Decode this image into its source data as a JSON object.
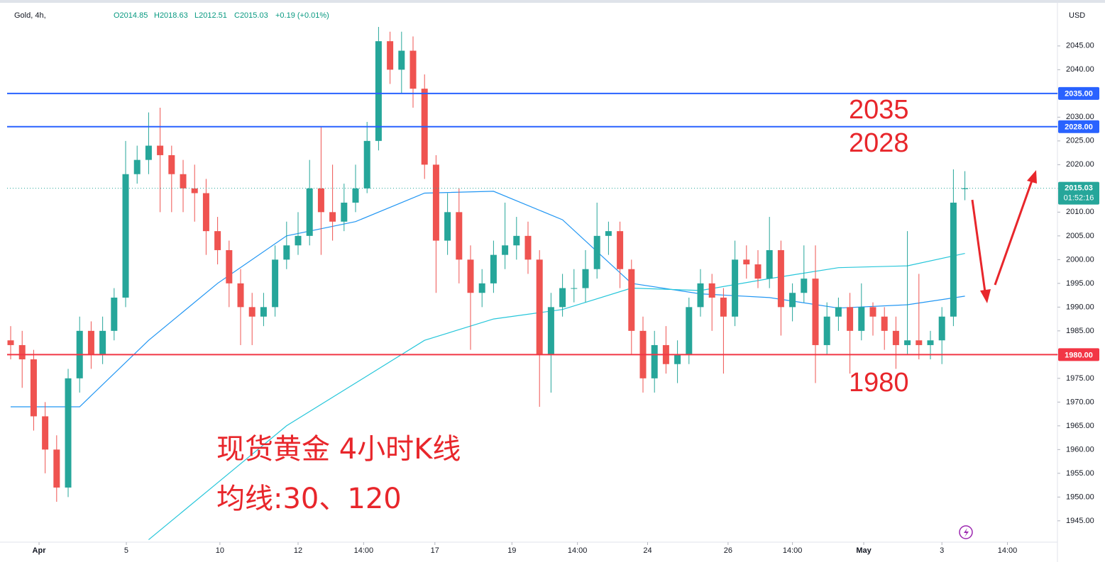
{
  "chart_data": {
    "type": "candlestick",
    "title": "Gold, 4h,",
    "ohlc_labels": [
      "O2014.85",
      "H2018.63",
      "L2012.51",
      "C2015.03"
    ],
    "change_label": "+0.19 (+0.01%)",
    "currency": "USD",
    "xlim": [
      -0.31,
      91.05
    ],
    "xticks": [
      {
        "value": 2.47,
        "label": "Apr"
      },
      {
        "value": 10.06,
        "label": "5"
      },
      {
        "value": 18.2,
        "label": "10"
      },
      {
        "value": 25,
        "label": "12"
      },
      {
        "value": 30.7,
        "label": "14:00"
      },
      {
        "value": 36.9,
        "label": "17"
      },
      {
        "value": 43.6,
        "label": "19"
      },
      {
        "value": 49.3,
        "label": "14:00"
      },
      {
        "value": 55.4,
        "label": "24"
      },
      {
        "value": 62.4,
        "label": "26"
      },
      {
        "value": 68,
        "label": "14:00"
      },
      {
        "value": 74.2,
        "label": "May"
      },
      {
        "value": 81,
        "label": "3"
      },
      {
        "value": 86.7,
        "label": "14:00"
      }
    ],
    "ylim": [
      1940.5,
      2050.2
    ],
    "yticks": [
      {
        "value": 2045,
        "label": "2045.00"
      },
      {
        "value": 2040,
        "label": "2040.00"
      },
      {
        "value": 2035,
        "label": "2035.00"
      },
      {
        "value": 2030,
        "label": "2030.00"
      },
      {
        "value": 2025,
        "label": "2025.00"
      },
      {
        "value": 2020,
        "label": "2020.00"
      },
      {
        "value": 2015,
        "label": "2015.00"
      },
      {
        "value": 2010,
        "label": "2010.00"
      },
      {
        "value": 2005,
        "label": "2005.00"
      },
      {
        "value": 2000,
        "label": "2000.00"
      },
      {
        "value": 1995,
        "label": "1995.00"
      },
      {
        "value": 1990,
        "label": "1990.00"
      },
      {
        "value": 1985,
        "label": "1985.00"
      },
      {
        "value": 1980,
        "label": "1980.00"
      },
      {
        "value": 1975,
        "label": "1975.00"
      },
      {
        "value": 1970,
        "label": "1970.00"
      },
      {
        "value": 1965,
        "label": "1965.00"
      },
      {
        "value": 1960,
        "label": "1960.00"
      },
      {
        "value": 1955,
        "label": "1955.00"
      },
      {
        "value": 1950,
        "label": "1950.00"
      },
      {
        "value": 1945,
        "label": "1945.00"
      }
    ],
    "up_color": "#26a69a",
    "down_color": "#ef5350",
    "series": {
      "open": [
        1983,
        1982,
        1979,
        1967,
        1960,
        1952,
        1975,
        1985,
        1980,
        1985,
        1992,
        2018,
        2021,
        2024,
        2022,
        2018,
        2015,
        2014,
        2006,
        2002,
        1995,
        1990,
        1988,
        1990,
        2000,
        2003,
        2005,
        2015,
        2010,
        2008,
        2012,
        2015,
        2025,
        2046,
        2040,
        2044,
        2036,
        2020,
        2004,
        2010,
        2000,
        1993,
        1995,
        2001,
        2003,
        2005,
        2000,
        1980,
        1990,
        1994,
        1994,
        1998,
        2005,
        2006,
        1998,
        1985,
        1975,
        1982,
        1978,
        1980,
        1990,
        1995,
        1992,
        1988,
        2000,
        1999,
        1996,
        2002,
        1990,
        1993,
        1996,
        1982,
        1988,
        1990,
        1985,
        1990,
        1988,
        1985,
        1982,
        1983,
        1982,
        1983,
        1988,
        2014.85
      ],
      "high": [
        1986,
        1985,
        1981,
        1970,
        1963,
        1977,
        1988,
        1987,
        1988,
        1994,
        2025,
        2024,
        2031,
        2032,
        2024,
        2021,
        2020,
        2017,
        2009,
        2004,
        1998,
        1993,
        1993,
        2003,
        2008,
        2010,
        2021,
        2028,
        2020,
        2016,
        2020,
        2029,
        2049,
        2048,
        2048,
        2047,
        2039,
        2022,
        2014,
        2015,
        2003,
        1998,
        2004,
        2012,
        2009,
        2008,
        2002,
        1993,
        1997,
        1998,
        2002,
        2012,
        2008,
        2008,
        2000,
        1988,
        1985,
        1986,
        1983,
        1992,
        1998,
        1997,
        1994,
        2004,
        2003,
        2002,
        2009,
        2004,
        1995,
        2003,
        2003,
        1991,
        1992,
        1993,
        1995,
        1991,
        1990,
        1988,
        2006,
        1997,
        1985,
        1990,
        2019,
        2018.63
      ],
      "low": [
        1979,
        1973,
        1964,
        1955,
        1949,
        1950,
        1972,
        1977,
        1978,
        1983,
        1990,
        2016,
        2018,
        2010,
        2010,
        2010,
        2008,
        2001,
        1999,
        1990,
        1982,
        1982,
        1986,
        1988,
        1998,
        2001,
        2003,
        2001,
        2004,
        2006,
        2010,
        2014,
        2023,
        2037,
        2035,
        2032,
        2017,
        1993,
        2001,
        1995,
        1981,
        1990,
        1993,
        1998,
        2000,
        1997,
        1969,
        1972,
        1988,
        1991,
        1991,
        1996,
        2001,
        1994,
        1980,
        1972,
        1972,
        1976,
        1974,
        1978,
        1988,
        1985,
        1976,
        1986,
        1996,
        1994,
        1994,
        1984,
        1987,
        1991,
        1974,
        1980,
        1985,
        1976,
        1983,
        1984,
        1981,
        1977,
        1980,
        1979,
        1979,
        1978,
        1986,
        2012.51
      ],
      "close": [
        1982,
        1979,
        1967,
        1960,
        1952,
        1975,
        1985,
        1980,
        1985,
        1992,
        2018,
        2021,
        2024,
        2022,
        2018,
        2015,
        2014,
        2006,
        2002,
        1995,
        1990,
        1988,
        1990,
        2000,
        2003,
        2005,
        2015,
        2010,
        2008,
        2012,
        2015,
        2025,
        2046,
        2040,
        2044,
        2036,
        2020,
        2004,
        2010,
        2000,
        1993,
        1995,
        2001,
        2003,
        2005,
        2000,
        1980,
        1990,
        1994,
        1994,
        1998,
        2005,
        2006,
        1998,
        1985,
        1975,
        1982,
        1978,
        1980,
        1990,
        1995,
        1992,
        1988,
        2000,
        1999,
        1996,
        2002,
        1990,
        1993,
        1996,
        1982,
        1988,
        1990,
        1985,
        1990,
        1988,
        1985,
        1982,
        1983,
        1982,
        1983,
        1988,
        2012,
        2015.03
      ]
    },
    "moving_averages": [
      {
        "color": "#2196f3",
        "x": [
          0,
          6,
          12,
          18,
          24,
          30,
          36,
          42,
          48,
          54,
          60,
          66,
          72,
          78,
          83
        ],
        "values": [
          1969,
          1969,
          1983,
          1995,
          2005,
          2008,
          2014,
          2014.4,
          2008.4,
          1995,
          1992.8,
          1992,
          1989.8,
          1990.5,
          1992.3
        ]
      },
      {
        "color": "#26c6da",
        "x": [
          12,
          18,
          24,
          30,
          36,
          42,
          48,
          54,
          60,
          66,
          72,
          78,
          83
        ],
        "values": [
          1941,
          1953,
          1965,
          1974,
          1983,
          1987.5,
          1989.5,
          1994,
          1993.5,
          1996,
          1998.3,
          1998.7,
          2001.3
        ]
      }
    ],
    "levels": [
      {
        "value": 2035,
        "label": "2035.00",
        "color": "#2962ff"
      },
      {
        "value": 2028,
        "label": "2028.00",
        "color": "#2962ff"
      },
      {
        "value": 1980,
        "label": "1980.00",
        "color": "#f23645"
      }
    ],
    "last_price": {
      "value": 2015.03,
      "label": "2015.03",
      "countdown": "01:52:16",
      "color": "#26a69a"
    },
    "annotations": [
      "2035",
      "2028",
      "1980",
      "现货黄金 4小时K线",
      "均线:30、120"
    ]
  }
}
